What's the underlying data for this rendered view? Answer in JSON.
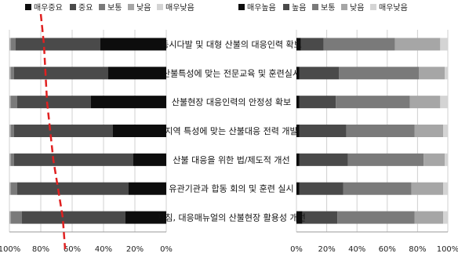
{
  "chart_data": [
    {
      "type": "bar",
      "orientation": "horizontal",
      "stacked": true,
      "percent": true,
      "x_reversed": true,
      "title": "",
      "xlabel": "",
      "ylabel": "",
      "xlim": [
        0,
        100
      ],
      "x_tick_labels": [
        "0%",
        "20%",
        "40%",
        "60%",
        "80%",
        "100%"
      ],
      "legend_position": "top",
      "categories": [
        "동시다발 및 대형 산불의 대응인력 확보",
        "산불특성에 맞는 전문교육 및 훈련실시",
        "산불현장 대응인력의 안정성 확보",
        "지역 특성에 맞는 산불대응 전력 개발",
        "산불 대응을 위한 법/제도적 개선",
        "유관기관과 합동 회의 및 훈련 실시",
        "지침, 대응매뉴얼의 산불현장 활용성 개선"
      ],
      "series": [
        {
          "name": "매우중요",
          "color": "#0d0d0d",
          "values": [
            42,
            37,
            48,
            34,
            21,
            24,
            26
          ]
        },
        {
          "name": "중요",
          "color": "#4a4a4a",
          "values": [
            54,
            60,
            47,
            63,
            76,
            71,
            66
          ]
        },
        {
          "name": "보통",
          "color": "#7a7a7a",
          "values": [
            3,
            2,
            4,
            2,
            2,
            4,
            7
          ]
        },
        {
          "name": "낮음",
          "color": "#a6a6a6",
          "values": [
            1,
            1,
            1,
            1,
            1,
            1,
            1
          ]
        },
        {
          "name": "매우낮음",
          "color": "#d4d4d4",
          "values": [
            0,
            0,
            0,
            0,
            0,
            0,
            0
          ]
        }
      ],
      "trend_line": {
        "style": "dashed",
        "color": "#e02020",
        "values": [
          78,
          77,
          76,
          74,
          72,
          69,
          66
        ]
      }
    },
    {
      "type": "bar",
      "orientation": "horizontal",
      "stacked": true,
      "percent": true,
      "title": "",
      "xlabel": "",
      "ylabel": "",
      "xlim": [
        0,
        100
      ],
      "x_tick_labels": [
        "0%",
        "20%",
        "40%",
        "60%",
        "80%",
        "100%"
      ],
      "legend_position": "top",
      "series": [
        {
          "name": "매우높음",
          "color": "#0d0d0d",
          "values": [
            3,
            2,
            2,
            2,
            2,
            2,
            4
          ]
        },
        {
          "name": "높음",
          "color": "#4a4a4a",
          "values": [
            15,
            26,
            24,
            31,
            32,
            29,
            23
          ]
        },
        {
          "name": "보통",
          "color": "#7a7a7a",
          "values": [
            47,
            53,
            49,
            45,
            50,
            45,
            51
          ]
        },
        {
          "name": "낮음",
          "color": "#a6a6a6",
          "values": [
            30,
            17,
            20,
            19,
            14,
            21,
            19
          ]
        },
        {
          "name": "매우낮음",
          "color": "#d4d4d4",
          "values": [
            5,
            2,
            5,
            3,
            2,
            3,
            3
          ]
        }
      ]
    }
  ]
}
